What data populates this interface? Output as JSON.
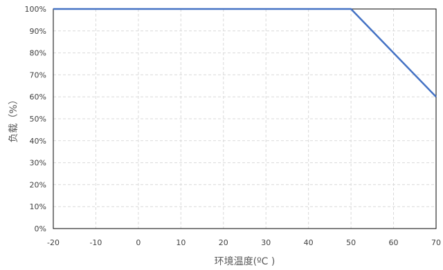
{
  "chart_data": {
    "type": "line",
    "title": "",
    "xlabel": "环境温度(ºC )",
    "ylabel": "负载（%）",
    "x_ticks": [
      "-20",
      "-10",
      "0",
      "10",
      "20",
      "30",
      "40",
      "50",
      "60",
      "70"
    ],
    "y_ticks": [
      "0%",
      "10%",
      "20%",
      "30%",
      "40%",
      "50%",
      "60%",
      "70%",
      "80%",
      "90%",
      "100%"
    ],
    "xlim": [
      -20,
      70
    ],
    "ylim": [
      0,
      100
    ],
    "grid": true,
    "legend": "none",
    "series": [
      {
        "color": "#4472c4",
        "x": [
          -20,
          50,
          70
        ],
        "y": [
          100,
          100,
          60
        ]
      }
    ]
  }
}
